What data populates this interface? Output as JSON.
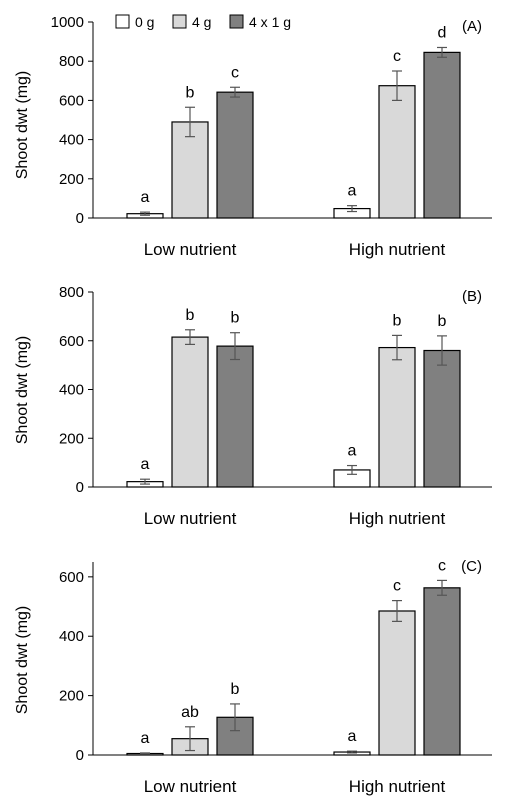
{
  "legend": {
    "items": [
      {
        "label": "0 g",
        "color": "#ffffff"
      },
      {
        "label": "4 g",
        "color": "#d9d9d9"
      },
      {
        "label": "4 x 1 g",
        "color": "#808080"
      }
    ]
  },
  "colors": {
    "bar_0g": "#ffffff",
    "bar_4g": "#d9d9d9",
    "bar_4x1g": "#808080",
    "stroke": "#000000",
    "error_bar": "#555555"
  },
  "chart_data": [
    {
      "type": "bar",
      "panel_label": "(A)",
      "ylabel": "Shoot dwt (mg)",
      "ylim": [
        0,
        1000
      ],
      "yticks": [
        0,
        200,
        400,
        600,
        800,
        1000
      ],
      "categories": [
        "Low nutrient",
        "High nutrient"
      ],
      "series": [
        {
          "name": "0 g",
          "values": [
            22,
            48
          ],
          "errors": [
            8,
            15
          ],
          "letters": [
            "a",
            "a"
          ]
        },
        {
          "name": "4 g",
          "values": [
            490,
            675
          ],
          "errors": [
            75,
            75
          ],
          "letters": [
            "b",
            "c"
          ]
        },
        {
          "name": "4 x 1 g",
          "values": [
            642,
            845
          ],
          "errors": [
            25,
            25
          ],
          "letters": [
            "c",
            "d"
          ]
        }
      ]
    },
    {
      "type": "bar",
      "panel_label": "(B)",
      "ylabel": "Shoot dwt (mg)",
      "ylim": [
        0,
        800
      ],
      "yticks": [
        0,
        200,
        400,
        600,
        800
      ],
      "categories": [
        "Low nutrient",
        "High nutrient"
      ],
      "series": [
        {
          "name": "0 g",
          "values": [
            22,
            70
          ],
          "errors": [
            10,
            18
          ],
          "letters": [
            "a",
            "a"
          ]
        },
        {
          "name": "4 g",
          "values": [
            615,
            572
          ],
          "errors": [
            30,
            50
          ],
          "letters": [
            "b",
            "b"
          ]
        },
        {
          "name": "4 x 1 g",
          "values": [
            578,
            560
          ],
          "errors": [
            55,
            60
          ],
          "letters": [
            "b",
            "b"
          ]
        }
      ]
    },
    {
      "type": "bar",
      "panel_label": "(C)",
      "ylabel": "Shoot dwt (mg)",
      "ylim": [
        0,
        650
      ],
      "yticks": [
        0,
        200,
        400,
        600
      ],
      "categories": [
        "Low nutrient",
        "High nutrient"
      ],
      "series": [
        {
          "name": "0 g",
          "values": [
            5,
            10
          ],
          "errors": [
            2,
            3
          ],
          "letters": [
            "a",
            "a"
          ]
        },
        {
          "name": "4 g",
          "values": [
            55,
            485
          ],
          "errors": [
            40,
            35
          ],
          "letters": [
            "ab",
            "c"
          ]
        },
        {
          "name": "4 x 1 g",
          "values": [
            127,
            563
          ],
          "errors": [
            45,
            25
          ],
          "letters": [
            "b",
            "c"
          ]
        }
      ]
    }
  ]
}
